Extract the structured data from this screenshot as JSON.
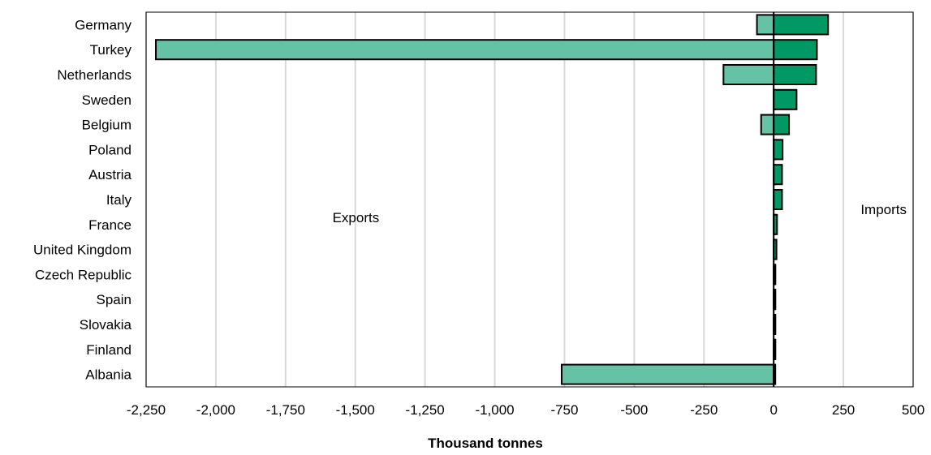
{
  "chart_data": {
    "type": "bar",
    "orientation": "horizontal",
    "xlabel": "Thousand tonnes",
    "xlim": [
      -2250,
      500
    ],
    "xticks": [
      -2250,
      -2000,
      -1750,
      -1500,
      -1250,
      -1000,
      -750,
      -500,
      -250,
      0,
      250,
      500
    ],
    "xtick_labels": [
      "-2,250",
      "-2,000",
      "-1,750",
      "-1,500",
      "-1,250",
      "-1,000",
      "-750",
      "-500",
      "-250",
      "0",
      "250",
      "500"
    ],
    "grid": "vertical",
    "categories": [
      "Germany",
      "Turkey",
      "Netherlands",
      "Sweden",
      "Belgium",
      "Poland",
      "Austria",
      "Italy",
      "France",
      "United Kingdom",
      "Czech Republic",
      "Spain",
      "Slovakia",
      "Finland",
      "Albania"
    ],
    "series": [
      {
        "name": "Exports",
        "color": "#66c2a5",
        "values": [
          -60,
          -2215,
          -180,
          0,
          -45,
          0,
          0,
          0,
          0,
          0,
          0,
          0,
          0,
          0,
          -760
        ]
      },
      {
        "name": "Imports",
        "color": "#009966",
        "values": [
          195,
          155,
          152,
          82,
          55,
          32,
          30,
          30,
          12,
          10,
          5,
          4,
          3,
          3,
          0
        ]
      }
    ],
    "annotations": [
      {
        "text": "Exports"
      },
      {
        "text": "Imports"
      }
    ]
  }
}
